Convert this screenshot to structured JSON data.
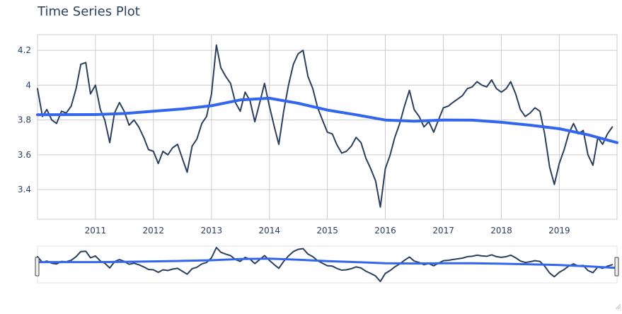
{
  "chart_data": {
    "type": "line",
    "title": "Time Series Plot",
    "xlabel": "",
    "ylabel": "",
    "xlim": [
      "2010-01-01",
      "2019-12-31"
    ],
    "ylim": [
      3.23,
      4.29
    ],
    "x_ticks": [
      "2011",
      "2012",
      "2013",
      "2014",
      "2015",
      "2016",
      "2017",
      "2018",
      "2019"
    ],
    "y_ticks": [
      "3.4",
      "3.6",
      "3.8",
      "4",
      "4.2"
    ],
    "grid": true,
    "legend": "none",
    "range_slider": true,
    "colors": {
      "series": "#2a3f5f",
      "trend": "#3366ee",
      "grid": "#cccccc",
      "tick_text": "#2a3f5f"
    },
    "series": [
      {
        "x": [
          "2010-01-01",
          "2010-02-01",
          "2010-03-01",
          "2010-04-01",
          "2010-05-01",
          "2010-06-01",
          "2010-07-01",
          "2010-08-01",
          "2010-09-01",
          "2010-10-01",
          "2010-11-01",
          "2010-12-01",
          "2011-01-01",
          "2011-02-01",
          "2011-03-01",
          "2011-04-01",
          "2011-05-01",
          "2011-06-01",
          "2011-07-01",
          "2011-08-01",
          "2011-09-01",
          "2011-10-01",
          "2011-11-01",
          "2011-12-01",
          "2012-01-01",
          "2012-02-01",
          "2012-03-01",
          "2012-04-01",
          "2012-05-01",
          "2012-06-01",
          "2012-07-01",
          "2012-08-01",
          "2012-09-01",
          "2012-10-01",
          "2012-11-01",
          "2012-12-01",
          "2013-01-01",
          "2013-02-01",
          "2013-03-01",
          "2013-04-01",
          "2013-05-01",
          "2013-06-01",
          "2013-07-01",
          "2013-08-01",
          "2013-09-01",
          "2013-10-01",
          "2013-11-01",
          "2013-12-01",
          "2014-01-01",
          "2014-02-01",
          "2014-03-01",
          "2014-04-01",
          "2014-05-01",
          "2014-06-01",
          "2014-07-01",
          "2014-08-01",
          "2014-09-01",
          "2014-10-01",
          "2014-11-01",
          "2014-12-01",
          "2015-01-01",
          "2015-02-01",
          "2015-03-01",
          "2015-04-01",
          "2015-05-01",
          "2015-06-01",
          "2015-07-01",
          "2015-08-01",
          "2015-09-01",
          "2015-10-01",
          "2015-11-01",
          "2015-12-01",
          "2016-01-01",
          "2016-02-01",
          "2016-03-01",
          "2016-04-01",
          "2016-05-01",
          "2016-06-01",
          "2016-07-01",
          "2016-08-01",
          "2016-09-01",
          "2016-10-01",
          "2016-11-01",
          "2016-12-01",
          "2017-01-01",
          "2017-02-01",
          "2017-03-01",
          "2017-04-01",
          "2017-05-01",
          "2017-06-01",
          "2017-07-01",
          "2017-08-01",
          "2017-09-01",
          "2017-10-01",
          "2017-11-01",
          "2017-12-01",
          "2018-01-01",
          "2018-02-01",
          "2018-03-01",
          "2018-04-01",
          "2018-05-01",
          "2018-06-01",
          "2018-07-01",
          "2018-08-01",
          "2018-09-01",
          "2018-10-01",
          "2018-11-01",
          "2018-12-01",
          "2019-01-01",
          "2019-02-01",
          "2019-03-01",
          "2019-04-01",
          "2019-05-01",
          "2019-06-01",
          "2019-07-01",
          "2019-08-01",
          "2019-09-01",
          "2019-10-01",
          "2019-11-01",
          "2019-12-01"
        ],
        "y": [
          3.98,
          3.82,
          3.86,
          3.8,
          3.78,
          3.85,
          3.84,
          3.88,
          3.98,
          4.12,
          4.13,
          3.95,
          4.0,
          3.86,
          3.8,
          3.67,
          3.84,
          3.9,
          3.85,
          3.77,
          3.8,
          3.76,
          3.7,
          3.63,
          3.62,
          3.55,
          3.62,
          3.6,
          3.64,
          3.66,
          3.58,
          3.5,
          3.65,
          3.69,
          3.78,
          3.82,
          3.95,
          4.23,
          4.1,
          4.05,
          4.01,
          3.9,
          3.85,
          3.96,
          3.91,
          3.79,
          3.9,
          4.01,
          3.88,
          3.76,
          3.66,
          3.85,
          4.0,
          4.12,
          4.18,
          4.2,
          4.05,
          3.98,
          3.87,
          3.8,
          3.73,
          3.72,
          3.66,
          3.61,
          3.62,
          3.65,
          3.7,
          3.67,
          3.58,
          3.52,
          3.45,
          3.3,
          3.52,
          3.6,
          3.7,
          3.78,
          3.88,
          3.97,
          3.86,
          3.82,
          3.76,
          3.79,
          3.73,
          3.8,
          3.87,
          3.88,
          3.9,
          3.92,
          3.94,
          3.98,
          3.99,
          4.02,
          4.0,
          3.99,
          4.03,
          3.98,
          3.96,
          3.98,
          4.02,
          3.95,
          3.86,
          3.82,
          3.84,
          3.87,
          3.85,
          3.72,
          3.53,
          3.43,
          3.55,
          3.63,
          3.72,
          3.78,
          3.72,
          3.74,
          3.6,
          3.54,
          3.7,
          3.66,
          3.72,
          3.76
        ]
      },
      {
        "x": [
          "2010-01-01",
          "2011-01-01",
          "2011-07-01",
          "2012-07-01",
          "2013-01-01",
          "2013-07-01",
          "2014-01-01",
          "2014-07-01",
          "2015-01-01",
          "2015-07-01",
          "2016-01-01",
          "2016-07-01",
          "2017-01-01",
          "2017-07-01",
          "2018-01-01",
          "2018-07-01",
          "2019-01-01",
          "2019-07-01",
          "2019-12-31"
        ],
        "y": [
          3.83,
          3.831,
          3.837,
          3.863,
          3.882,
          3.915,
          3.925,
          3.896,
          3.857,
          3.83,
          3.8,
          3.793,
          3.8,
          3.799,
          3.787,
          3.77,
          3.75,
          3.715,
          3.67
        ]
      }
    ]
  }
}
